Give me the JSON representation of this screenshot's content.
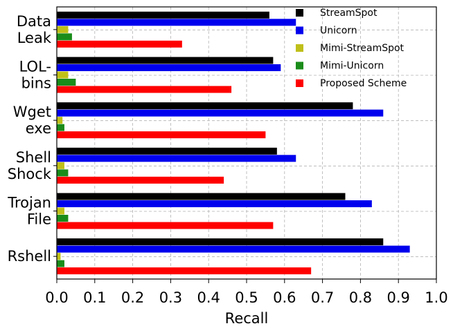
{
  "chart_data": {
    "type": "bar",
    "orientation": "horizontal",
    "title": "",
    "xlabel": "Recall",
    "ylabel": "",
    "xlim": [
      0.0,
      1.0
    ],
    "xticks": [
      0.0,
      0.1,
      0.2,
      0.3,
      0.4,
      0.5,
      0.6,
      0.7,
      0.8,
      0.9,
      1.0
    ],
    "xtick_labels": [
      "0.0",
      "0.1",
      "0.2",
      "0.3",
      "0.4",
      "0.5",
      "0.6",
      "0.7",
      "0.8",
      "0.9",
      "1.0"
    ],
    "grid": true,
    "legend_position": "top-right",
    "categories": [
      {
        "lines": [
          "Data",
          "Leak"
        ]
      },
      {
        "lines": [
          "LOL-",
          "bins"
        ]
      },
      {
        "lines": [
          "Wget",
          "exe"
        ]
      },
      {
        "lines": [
          "Shell",
          "Shock"
        ]
      },
      {
        "lines": [
          "Trojan",
          "File"
        ]
      },
      {
        "lines": [
          "Rshell"
        ]
      }
    ],
    "series": [
      {
        "name": "StreamSpot",
        "color": "#000000",
        "values": [
          0.56,
          0.57,
          0.78,
          0.58,
          0.76,
          0.86
        ]
      },
      {
        "name": "Unicorn",
        "color": "#0000ee",
        "values": [
          0.63,
          0.59,
          0.86,
          0.63,
          0.83,
          0.93
        ]
      },
      {
        "name": "Mimi-StreamSpot",
        "color": "#bfbf1a",
        "values": [
          0.03,
          0.03,
          0.015,
          0.02,
          0.02,
          0.01
        ]
      },
      {
        "name": "Mimi-Unicorn",
        "color": "#1a8c1a",
        "values": [
          0.04,
          0.05,
          0.02,
          0.03,
          0.03,
          0.02
        ]
      },
      {
        "name": "Proposed Scheme",
        "color": "#ff0000",
        "values": [
          0.33,
          0.46,
          0.55,
          0.44,
          0.57,
          0.67
        ]
      }
    ]
  }
}
